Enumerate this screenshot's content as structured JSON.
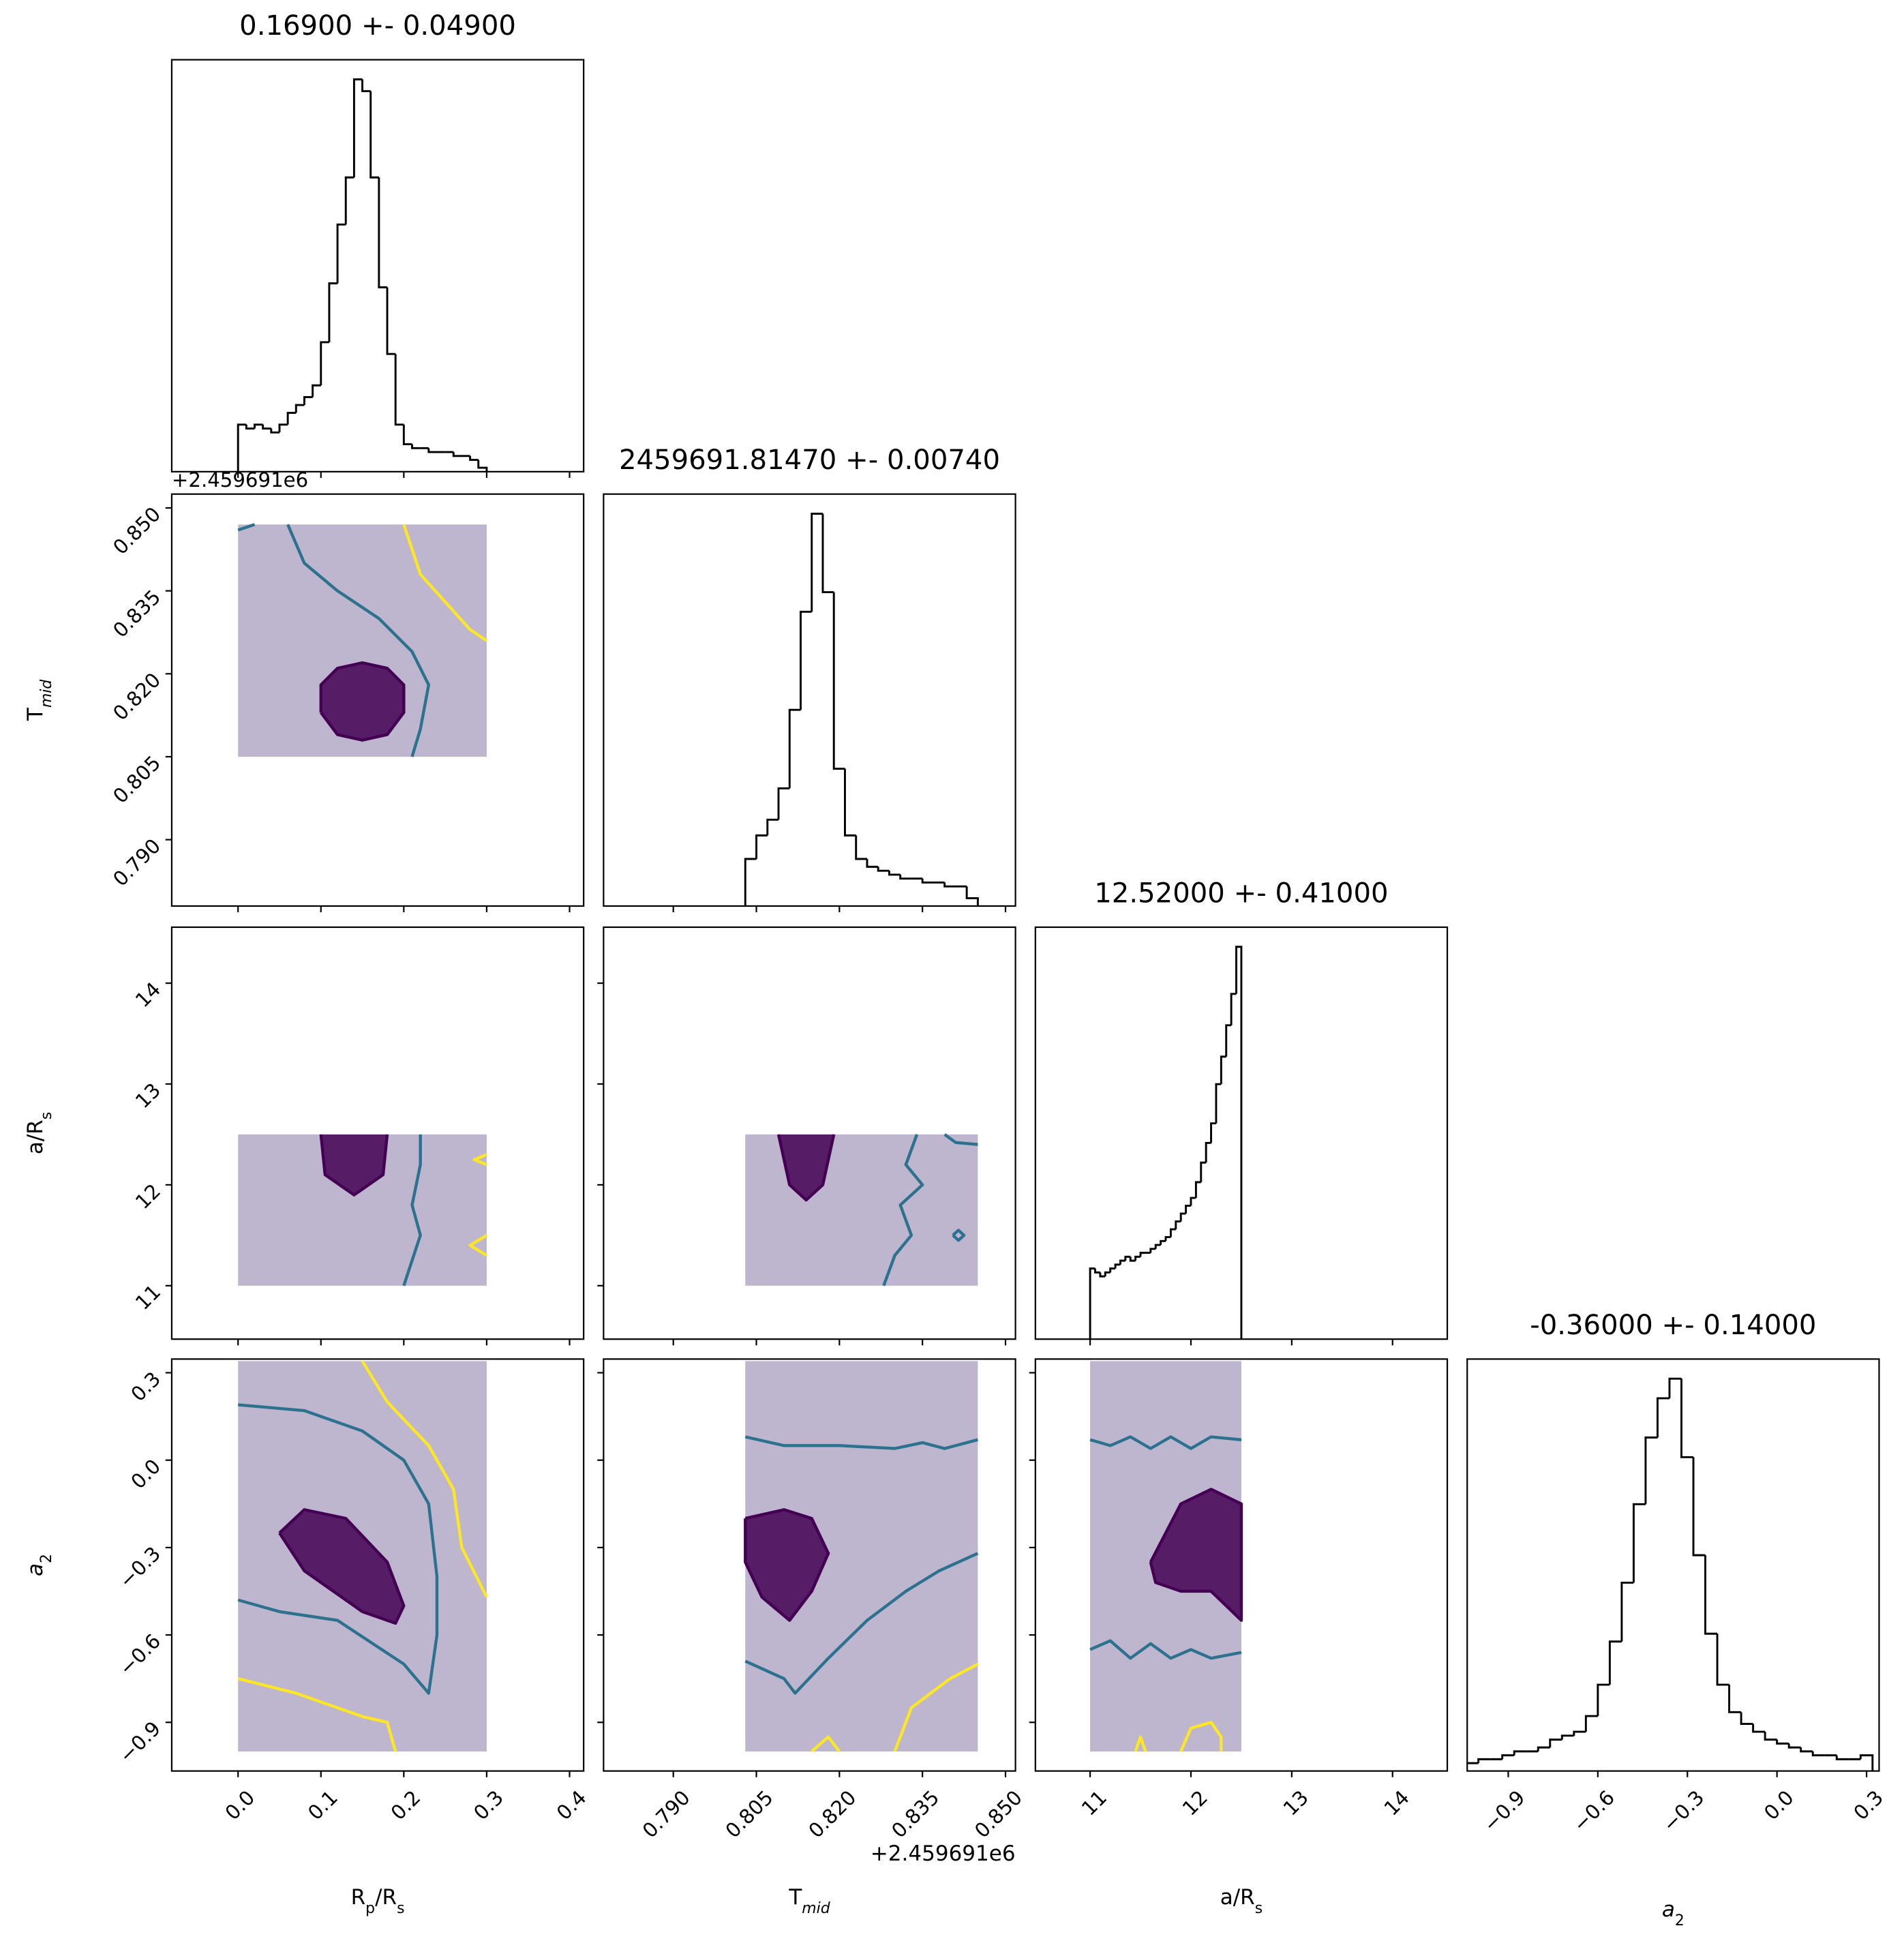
{
  "chart_data": [
    {
      "type": "histogram",
      "title": "0.16900 +- 0.04900",
      "bins": [
        0,
        0.01,
        0.02,
        0.03,
        0.04,
        0.05,
        0.06,
        0.07,
        0.08,
        0.09,
        0.1,
        0.11,
        0.12,
        0.13,
        0.14,
        0.15,
        0.16,
        0.17,
        0.18,
        0.19,
        0.2,
        0.21,
        0.22,
        0.23,
        0.24,
        0.25,
        0.26,
        0.27,
        0.28,
        0.29,
        0.3
      ],
      "values": [
        12,
        11,
        12,
        11,
        10,
        12,
        15,
        17,
        19,
        22,
        33,
        48,
        63,
        75,
        100,
        97,
        75,
        47,
        30,
        12,
        7,
        6,
        6,
        5,
        5,
        5,
        4,
        4,
        3,
        1
      ],
      "color": "#000000",
      "xlim": [
        -0.08,
        0.417
      ],
      "ylim": [
        0,
        105
      ],
      "xticks": [
        {
          "value": 0,
          "label": "0.0"
        },
        0.1,
        0.2,
        0.3,
        0.4
      ]
    },
    {
      "type": "scatter",
      "ylabel": [
        "T",
        {
          "sub": "mid"
        }
      ],
      "y_offset_label": "+2.459691e6",
      "xlim": [
        -0.08,
        0.417
      ],
      "ylim": [
        0.778,
        0.8525
      ],
      "xticks": [
        {
          "value": 0,
          "label": "0.0"
        },
        0.1,
        0.2,
        0.3,
        0.4
      ],
      "yticks": [
        {
          "value": 0.79,
          "label": "0.790"
        },
        0.805,
        {
          "value": 0.82,
          "label": "0.820"
        },
        0.835,
        {
          "value": 0.85,
          "label": "0.850"
        }
      ],
      "samples": {
        "x": [
          0,
          0.3
        ],
        "y": [
          0.805,
          0.847
        ],
        "color": "#6e5c92"
      },
      "contours": [
        {
          "color": "#440154",
          "fill": true,
          "x": [
            0.1,
            0.12,
            0.15,
            0.18,
            0.2,
            0.2,
            0.18,
            0.15,
            0.12,
            0.1,
            0.1
          ],
          "y": [
            0.813,
            0.809,
            0.808,
            0.809,
            0.813,
            0.818,
            0.821,
            0.822,
            0.821,
            0.818,
            0.813
          ]
        },
        {
          "color": "#2c728e",
          "x": [
            0.06,
            0.08,
            0.12,
            0.17,
            0.21,
            0.23,
            0.22,
            0.21
          ],
          "y": [
            0.847,
            0.84,
            0.835,
            0.83,
            0.824,
            0.818,
            0.81,
            0.805
          ]
        },
        {
          "color": "#2c728e",
          "x": [
            0,
            0.01,
            0.02
          ],
          "y": [
            0.846,
            0.8465,
            0.847
          ]
        },
        {
          "color": "#fde725",
          "x": [
            0.2,
            0.22,
            0.25,
            0.28,
            0.3
          ],
          "y": [
            0.847,
            0.838,
            0.833,
            0.828,
            0.826
          ]
        }
      ]
    },
    {
      "type": "histogram",
      "title": "2459691.81470 +- 0.00740",
      "bins": [
        0.803,
        0.805,
        0.807,
        0.809,
        0.811,
        0.813,
        0.815,
        0.817,
        0.819,
        0.821,
        0.823,
        0.825,
        0.827,
        0.829,
        0.831,
        0.833,
        0.835,
        0.837,
        0.839,
        0.841,
        0.843,
        0.845
      ],
      "values": [
        12,
        18,
        22,
        30,
        50,
        75,
        100,
        80,
        35,
        18,
        12,
        10,
        9,
        8,
        7,
        7,
        6,
        6,
        5,
        5,
        2
      ],
      "color": "#000000",
      "xlim": [
        0.7774,
        0.8518
      ],
      "ylim": [
        0,
        105
      ],
      "xticks": [
        {
          "value": 0.79,
          "label": "0.790"
        },
        0.805,
        {
          "value": 0.82,
          "label": "0.820"
        },
        0.835,
        {
          "value": 0.85,
          "label": "0.850"
        }
      ]
    },
    {
      "type": "scatter",
      "ylabel": [
        "a/R",
        {
          "sub": "s"
        }
      ],
      "xlim": [
        -0.08,
        0.417
      ],
      "ylim": [
        10.47,
        14.555
      ],
      "xticks": [
        {
          "value": 0,
          "label": "0.0"
        },
        0.1,
        0.2,
        0.3,
        0.4
      ],
      "yticks": [
        11,
        12,
        13,
        14
      ],
      "samples": {
        "x": [
          0,
          0.3
        ],
        "y": [
          11,
          12.5
        ],
        "color": "#6e5c92"
      },
      "contours": [
        {
          "color": "#440154",
          "fill": true,
          "x": [
            0.1,
            0.105,
            0.14,
            0.175,
            0.18
          ],
          "y": [
            12.5,
            12.1,
            11.9,
            12.1,
            12.5
          ]
        },
        {
          "color": "#2c728e",
          "x": [
            0.22,
            0.22,
            0.21,
            0.22,
            0.2
          ],
          "y": [
            12.5,
            12.2,
            11.8,
            11.5,
            11
          ]
        },
        {
          "color": "#fde725",
          "x": [
            0.3,
            0.285,
            0.3
          ],
          "y": [
            12.3,
            12.25,
            12.2
          ]
        },
        {
          "color": "#fde725",
          "x": [
            0.3,
            0.28,
            0.3
          ],
          "y": [
            11.5,
            11.4,
            11.3
          ]
        }
      ]
    },
    {
      "type": "scatter",
      "xlim": [
        0.7774,
        0.8518
      ],
      "ylim": [
        10.47,
        14.555
      ],
      "xticks": [
        {
          "value": 0.79,
          "label": "0.790"
        },
        0.805,
        {
          "value": 0.82,
          "label": "0.820"
        },
        0.835,
        {
          "value": 0.85,
          "label": "0.850"
        }
      ],
      "yticks": [
        11,
        12,
        13,
        14
      ],
      "samples": {
        "x": [
          0.803,
          0.845
        ],
        "y": [
          11,
          12.5
        ],
        "color": "#6e5c92"
      },
      "contours": [
        {
          "color": "#440154",
          "fill": true,
          "x": [
            0.809,
            0.811,
            0.814,
            0.817,
            0.819
          ],
          "y": [
            12.5,
            12,
            11.85,
            12,
            12.5
          ]
        },
        {
          "color": "#2c728e",
          "x": [
            0.834,
            0.832,
            0.835,
            0.831,
            0.833,
            0.83,
            0.828
          ],
          "y": [
            12.5,
            12.2,
            12,
            11.8,
            11.5,
            11.3,
            11
          ]
        },
        {
          "color": "#2c728e",
          "x": [
            0.8405,
            0.8415,
            0.8425,
            0.8415,
            0.8405
          ],
          "y": [
            11.5,
            11.55,
            11.5,
            11.45,
            11.5
          ]
        },
        {
          "color": "#2c728e",
          "x": [
            0.839,
            0.841,
            0.845
          ],
          "y": [
            12.5,
            12.42,
            12.4
          ]
        }
      ]
    },
    {
      "type": "histogram",
      "title": "12.52000 +- 0.41000",
      "bins": [
        11,
        11.05,
        11.1,
        11.15,
        11.2,
        11.25,
        11.3,
        11.35,
        11.4,
        11.45,
        11.5,
        11.55,
        11.6,
        11.65,
        11.7,
        11.75,
        11.8,
        11.85,
        11.9,
        11.95,
        12,
        12.05,
        12.1,
        12.15,
        12.2,
        12.25,
        12.3,
        12.35,
        12.4,
        12.45,
        12.5
      ],
      "values": [
        18,
        17,
        16,
        17,
        18,
        19,
        20,
        21,
        20,
        21,
        22,
        22,
        23,
        24,
        25,
        26,
        28,
        30,
        32,
        34,
        36,
        40,
        45,
        50,
        55,
        65,
        72,
        80,
        88,
        100
      ],
      "color": "#000000",
      "xlim": [
        10.457,
        14.543
      ],
      "ylim": [
        0,
        105
      ],
      "xticks": [
        11,
        12,
        13,
        14
      ]
    },
    {
      "type": "scatter",
      "xlabel": [
        "R",
        {
          "sub": "p"
        },
        "/R",
        {
          "sub": "s"
        }
      ],
      "ylabel": [
        {
          "italic": "a"
        },
        {
          "sub": "2"
        }
      ],
      "xlim": [
        -0.08,
        0.417
      ],
      "ylim": [
        -1.067,
        0.347
      ],
      "xticks": [
        {
          "value": 0,
          "label": "0.0"
        },
        0.1,
        0.2,
        0.3,
        0.4
      ],
      "yticks": [
        {
          "value": -0.9,
          "label": "−0.9"
        },
        {
          "value": -0.6,
          "label": "−0.6"
        },
        {
          "value": -0.3,
          "label": "−0.3"
        },
        {
          "value": 0,
          "label": "0.0"
        },
        0.3
      ],
      "samples": {
        "x": [
          0,
          0.3
        ],
        "y": [
          -1,
          0.34
        ],
        "color": "#6e5c92"
      },
      "contours": [
        {
          "color": "#440154",
          "fill": true,
          "x": [
            0.05,
            0.08,
            0.13,
            0.18,
            0.2,
            0.19,
            0.15,
            0.08,
            0.05
          ],
          "y": [
            -0.25,
            -0.17,
            -0.2,
            -0.35,
            -0.5,
            -0.56,
            -0.52,
            -0.38,
            -0.25
          ]
        },
        {
          "color": "#2c728e",
          "x": [
            0,
            0.08,
            0.15,
            0.2,
            0.23,
            0.24,
            0.24,
            0.23,
            0.2,
            0.12,
            0.05,
            0
          ],
          "y": [
            0.19,
            0.17,
            0.1,
            0,
            -0.15,
            -0.4,
            -0.6,
            -0.8,
            -0.7,
            -0.55,
            -0.52,
            -0.48
          ]
        },
        {
          "color": "#fde725",
          "x": [
            0.15,
            0.18,
            0.23,
            0.26,
            0.27,
            0.3
          ],
          "y": [
            0.34,
            0.2,
            0.05,
            -0.1,
            -0.3,
            -0.47
          ]
        },
        {
          "color": "#fde725",
          "x": [
            0,
            0.07,
            0.15,
            0.18,
            0.19
          ],
          "y": [
            -0.75,
            -0.8,
            -0.88,
            -0.9,
            -1
          ]
        }
      ]
    },
    {
      "type": "scatter",
      "xlabel": [
        "T",
        {
          "sub": "mid"
        }
      ],
      "x_offset_label": "+2.459691e6",
      "xlim": [
        0.7774,
        0.8518
      ],
      "ylim": [
        -1.067,
        0.347
      ],
      "xticks": [
        {
          "value": 0.79,
          "label": "0.790"
        },
        0.805,
        {
          "value": 0.82,
          "label": "0.820"
        },
        0.835,
        {
          "value": 0.85,
          "label": "0.850"
        }
      ],
      "yticks": [
        -0.9,
        -0.6,
        -0.3,
        0,
        0.3
      ],
      "samples": {
        "x": [
          0.803,
          0.845
        ],
        "y": [
          -1,
          0.34
        ],
        "color": "#6e5c92"
      },
      "contours": [
        {
          "color": "#440154",
          "fill": true,
          "x": [
            0.803,
            0.81,
            0.815,
            0.818,
            0.815,
            0.811,
            0.806,
            0.803,
            0.803
          ],
          "y": [
            -0.2,
            -0.17,
            -0.2,
            -0.32,
            -0.45,
            -0.55,
            -0.47,
            -0.35,
            -0.2
          ]
        },
        {
          "color": "#2c728e",
          "x": [
            0.803,
            0.81,
            0.82,
            0.83,
            0.835,
            0.839,
            0.845
          ],
          "y": [
            0.08,
            0.05,
            0.05,
            0.04,
            0.06,
            0.04,
            0.07
          ]
        },
        {
          "color": "#2c728e",
          "x": [
            0.803,
            0.81,
            0.812,
            0.818,
            0.825,
            0.832,
            0.838,
            0.845
          ],
          "y": [
            -0.69,
            -0.75,
            -0.8,
            -0.68,
            -0.55,
            -0.45,
            -0.38,
            -0.32
          ]
        },
        {
          "color": "#fde725",
          "x": [
            0.83,
            0.833,
            0.84,
            0.845
          ],
          "y": [
            -1,
            -0.85,
            -0.75,
            -0.7
          ]
        },
        {
          "color": "#fde725",
          "x": [
            0.815,
            0.818,
            0.82
          ],
          "y": [
            -1,
            -0.95,
            -1
          ]
        }
      ]
    },
    {
      "type": "scatter",
      "xlabel": [
        "a/R",
        {
          "sub": "s"
        }
      ],
      "xlim": [
        10.457,
        14.543
      ],
      "ylim": [
        -1.067,
        0.347
      ],
      "xticks": [
        11,
        12,
        13,
        14
      ],
      "yticks": [
        -0.9,
        -0.6,
        -0.3,
        0,
        0.3
      ],
      "samples": {
        "x": [
          11,
          12.5
        ],
        "y": [
          -1,
          0.34
        ],
        "color": "#6e5c92"
      },
      "contours": [
        {
          "color": "#440154",
          "fill": true,
          "x": [
            11.6,
            11.9,
            12.2,
            12.5,
            12.5,
            12.2,
            11.9,
            11.65,
            11.6
          ],
          "y": [
            -0.35,
            -0.15,
            -0.1,
            -0.15,
            -0.55,
            -0.45,
            -0.45,
            -0.42,
            -0.35
          ]
        },
        {
          "color": "#2c728e",
          "x": [
            11,
            11.2,
            11.4,
            11.6,
            11.8,
            12,
            12.2,
            12.5
          ],
          "y": [
            0.07,
            0.05,
            0.08,
            0.04,
            0.08,
            0.04,
            0.08,
            0.07
          ]
        },
        {
          "color": "#2c728e",
          "x": [
            11,
            11.2,
            11.4,
            11.6,
            11.8,
            12,
            12.2,
            12.5
          ],
          "y": [
            -0.65,
            -0.62,
            -0.68,
            -0.63,
            -0.68,
            -0.65,
            -0.68,
            -0.66
          ]
        },
        {
          "color": "#fde725",
          "x": [
            11.45,
            11.5,
            11.55
          ],
          "y": [
            -1,
            -0.95,
            -1
          ]
        },
        {
          "color": "#fde725",
          "x": [
            11.9,
            12,
            12.2,
            12.3,
            12.3
          ],
          "y": [
            -1,
            -0.92,
            -0.9,
            -0.95,
            -1
          ]
        }
      ]
    },
    {
      "type": "histogram",
      "title": "-0.36000 +- 0.14000",
      "xlabel": [
        {
          "italic": "a"
        },
        {
          "sub": "2"
        }
      ],
      "bins": [
        -1.04,
        -1,
        -0.96,
        -0.92,
        -0.88,
        -0.84,
        -0.8,
        -0.76,
        -0.72,
        -0.68,
        -0.64,
        -0.6,
        -0.56,
        -0.52,
        -0.48,
        -0.44,
        -0.4,
        -0.36,
        -0.32,
        -0.28,
        -0.24,
        -0.2,
        -0.16,
        -0.12,
        -0.08,
        -0.04,
        0,
        0.04,
        0.08,
        0.12,
        0.16,
        0.2,
        0.24,
        0.28,
        0.32
      ],
      "values": [
        2,
        3,
        3,
        4,
        5,
        5,
        6,
        8,
        9,
        10,
        14,
        22,
        33,
        48,
        68,
        85,
        95,
        100,
        80,
        55,
        35,
        22,
        15,
        12,
        10,
        8,
        7,
        6,
        5,
        4,
        4,
        3,
        3,
        4
      ],
      "color": "#000000",
      "xlim": [
        -1.0375,
        0.342
      ],
      "ylim": [
        0,
        105
      ],
      "xticks": [
        {
          "value": -0.9,
          "label": "−0.9"
        },
        {
          "value": -0.6,
          "label": "−0.6"
        },
        {
          "value": -0.3,
          "label": "−0.3"
        },
        {
          "value": 0,
          "label": "0.0"
        },
        0.3
      ]
    }
  ]
}
